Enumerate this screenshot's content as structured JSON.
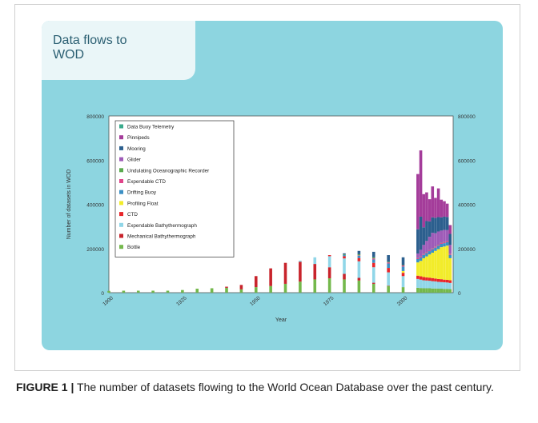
{
  "figure": {
    "label": "FIGURE 1 |",
    "caption": " The number of datasets flowing to the World Ocean Database over the past century."
  },
  "chart_data": {
    "type": "bar",
    "stacked": true,
    "title": "Data flows to\nWOD",
    "xlabel": "Year",
    "ylabel": "Number of datasets in WOD",
    "xlim": [
      1900,
      2017
    ],
    "ylim": [
      0,
      800000
    ],
    "x_ticks": [
      "1900",
      "1925",
      "1950",
      "1975",
      "2000"
    ],
    "y_ticks": [
      "0",
      "200000",
      "400000",
      "600000",
      "800000"
    ],
    "legend_position": "top-left",
    "colors": {
      "Data Buoy Telemetry": "#3aaa8c",
      "Pinnipeds": "#a43c9a",
      "Mooring": "#2c5f8e",
      "Glider": "#9e5bb8",
      "Undulating Oceanographic Recorder": "#5aaa4e",
      "Expendable CTD": "#e0448a",
      "Drifting Buoy": "#3b8fc4",
      "Profiling Float": "#f2ec2a",
      "CTD": "#e8262a",
      "Expendable Bathythermograph": "#90d6e8",
      "Mechanical Bathythermograph": "#c8242c",
      "Bottle": "#74b84c"
    },
    "series_order": [
      "Bottle",
      "Mechanical Bathythermograph",
      "Expendable Bathythermograph",
      "CTD",
      "Profiling Float",
      "Drifting Buoy",
      "Expendable CTD",
      "Undulating Oceanographic Recorder",
      "Glider",
      "Mooring",
      "Pinnipeds",
      "Data Buoy Telemetry"
    ],
    "legend_order": [
      "Data Buoy Telemetry",
      "Pinnipeds",
      "Mooring",
      "Glider",
      "Undulating Oceanographic Recorder",
      "Expendable CTD",
      "Drifting Buoy",
      "Profiling Float",
      "CTD",
      "Expendable Bathythermograph",
      "Mechanical Bathythermograph",
      "Bottle"
    ],
    "years": [
      1900,
      1905,
      1910,
      1915,
      1920,
      1925,
      1930,
      1935,
      1940,
      1945,
      1950,
      1955,
      1960,
      1965,
      1970,
      1975,
      1980,
      1985,
      1990,
      1995,
      2000,
      2005,
      2006,
      2007,
      2008,
      2009,
      2010,
      2011,
      2012,
      2013,
      2014,
      2015,
      2016
    ],
    "series": [
      {
        "name": "Bottle",
        "values": [
          8000,
          9000,
          9000,
          9000,
          9000,
          12000,
          18000,
          20000,
          22000,
          15000,
          25000,
          30000,
          40000,
          50000,
          60000,
          65000,
          60000,
          55000,
          40000,
          30000,
          25000,
          22000,
          21000,
          20000,
          20000,
          20000,
          19000,
          19000,
          18000,
          18000,
          17000,
          17000,
          16000
        ]
      },
      {
        "name": "Mechanical Bathythermograph",
        "values": [
          0,
          0,
          0,
          0,
          0,
          0,
          0,
          0,
          5000,
          20000,
          50000,
          80000,
          95000,
          90000,
          70000,
          50000,
          25000,
          12000,
          5000,
          2000,
          0,
          0,
          0,
          0,
          0,
          0,
          0,
          0,
          0,
          0,
          0,
          0,
          0
        ]
      },
      {
        "name": "Expendable Bathythermograph",
        "values": [
          0,
          0,
          0,
          0,
          0,
          0,
          0,
          0,
          0,
          0,
          0,
          0,
          0,
          5000,
          30000,
          50000,
          70000,
          75000,
          70000,
          60000,
          50000,
          40000,
          38000,
          36000,
          35000,
          34000,
          33000,
          32000,
          31000,
          30000,
          30000,
          29000,
          28000
        ]
      },
      {
        "name": "CTD",
        "values": [
          0,
          0,
          0,
          0,
          0,
          0,
          0,
          0,
          0,
          0,
          0,
          0,
          0,
          0,
          0,
          5000,
          10000,
          15000,
          20000,
          20000,
          15000,
          15000,
          15000,
          15000,
          14000,
          14000,
          14000,
          13000,
          13000,
          13000,
          12000,
          12000,
          12000
        ]
      },
      {
        "name": "Profiling Float",
        "values": [
          0,
          0,
          0,
          0,
          0,
          0,
          0,
          0,
          0,
          0,
          0,
          0,
          0,
          0,
          0,
          0,
          0,
          0,
          0,
          0,
          8000,
          60000,
          70000,
          85000,
          95000,
          105000,
          115000,
          125000,
          135000,
          145000,
          150000,
          155000,
          100000
        ]
      },
      {
        "name": "Drifting Buoy",
        "values": [
          0,
          0,
          0,
          0,
          0,
          0,
          0,
          0,
          0,
          0,
          0,
          0,
          0,
          0,
          0,
          0,
          5000,
          10000,
          15000,
          20000,
          20000,
          15000,
          15000,
          15000,
          15000,
          15000,
          15000,
          15000,
          15000,
          15000,
          15000,
          15000,
          15000
        ]
      },
      {
        "name": "Expendable CTD",
        "values": [
          0,
          0,
          0,
          0,
          0,
          0,
          0,
          0,
          0,
          0,
          0,
          0,
          0,
          0,
          0,
          0,
          0,
          2000,
          5000,
          5000,
          5000,
          4000,
          4000,
          4000,
          4000,
          4000,
          4000,
          4000,
          4000,
          4000,
          4000,
          4000,
          4000
        ]
      },
      {
        "name": "Undulating Oceanographic Recorder",
        "values": [
          0,
          0,
          0,
          0,
          0,
          0,
          0,
          0,
          0,
          0,
          0,
          0,
          0,
          0,
          0,
          0,
          3000,
          5000,
          5000,
          3000,
          2000,
          1000,
          1000,
          1000,
          1000,
          1000,
          1000,
          1000,
          1000,
          1000,
          1000,
          1000,
          1000
        ]
      },
      {
        "name": "Glider",
        "values": [
          0,
          0,
          0,
          0,
          0,
          0,
          0,
          0,
          0,
          0,
          0,
          0,
          0,
          0,
          0,
          0,
          0,
          0,
          0,
          0,
          0,
          20000,
          30000,
          40000,
          50000,
          60000,
          70000,
          60000,
          60000,
          55000,
          55000,
          50000,
          40000
        ]
      },
      {
        "name": "Mooring",
        "values": [
          0,
          0,
          0,
          0,
          0,
          0,
          0,
          0,
          0,
          0,
          0,
          0,
          0,
          0,
          0,
          0,
          5000,
          15000,
          25000,
          30000,
          35000,
          110000,
          150000,
          80000,
          90000,
          70000,
          70000,
          70000,
          65000,
          60000,
          60000,
          60000,
          50000
        ]
      },
      {
        "name": "Pinnipeds",
        "values": [
          0,
          0,
          0,
          0,
          0,
          0,
          0,
          0,
          0,
          0,
          0,
          0,
          0,
          0,
          0,
          0,
          0,
          0,
          0,
          0,
          0,
          250000,
          300000,
          150000,
          130000,
          100000,
          140000,
          90000,
          130000,
          80000,
          70000,
          60000,
          40000
        ]
      },
      {
        "name": "Data Buoy Telemetry",
        "values": [
          0,
          0,
          0,
          0,
          0,
          0,
          0,
          0,
          0,
          0,
          0,
          0,
          0,
          0,
          0,
          0,
          0,
          0,
          0,
          0,
          0,
          0,
          0,
          0,
          0,
          0,
          0,
          0,
          0,
          0,
          0,
          0,
          0
        ]
      }
    ]
  }
}
